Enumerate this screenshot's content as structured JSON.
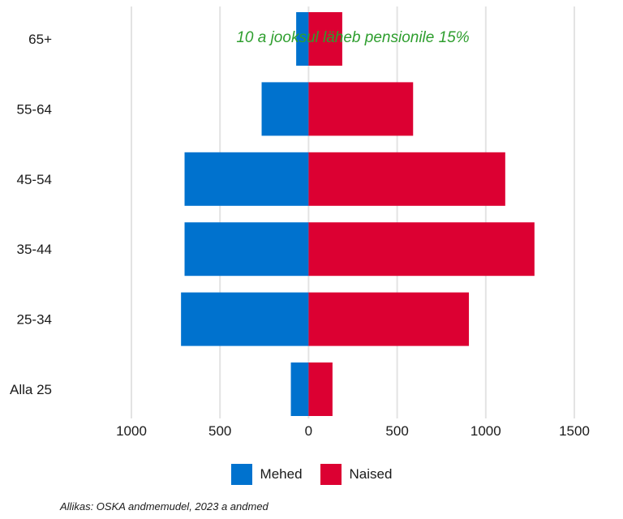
{
  "chart_data": {
    "type": "bar",
    "orientation": "horizontal",
    "layout": "population-pyramid",
    "annotation": "10 a jooksul läheb pensionile 15%",
    "annotation_color": "#2e9e2e",
    "categories": [
      "Alla 25",
      "25-34",
      "35-44",
      "45-54",
      "55-64",
      "65+"
    ],
    "series": [
      {
        "name": "Mehed",
        "color": "#0072ce",
        "values": [
          100,
          720,
          700,
          700,
          265,
          70
        ]
      },
      {
        "name": "Naised",
        "color": "#dc0032",
        "values": [
          135,
          905,
          1275,
          1110,
          590,
          190
        ]
      }
    ],
    "x_ticks": [
      -1000,
      -500,
      0,
      500,
      1000,
      1500
    ],
    "x_tick_labels": [
      "1000",
      "500",
      "0",
      "500",
      "1000",
      "1500"
    ],
    "xlim": [
      -1000,
      1500
    ],
    "grid": "vertical",
    "legend_position": "bottom",
    "source": "Allikas: OSKA andmemudel, 2023 a andmed"
  }
}
